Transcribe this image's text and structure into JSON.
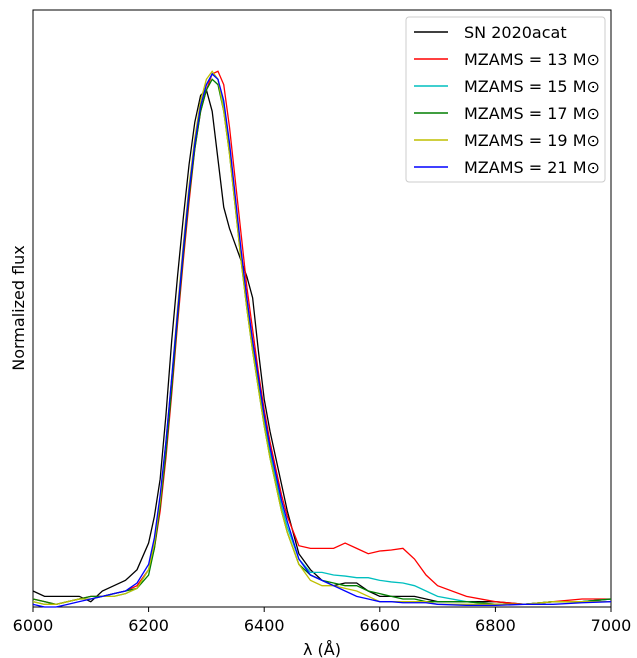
{
  "chart_data": {
    "type": "line",
    "xlabel": "λ (Å)",
    "ylabel": "Normalized flux",
    "x": [
      6000,
      6020,
      6040,
      6060,
      6080,
      6100,
      6120,
      6140,
      6160,
      6180,
      6200,
      6210,
      6220,
      6230,
      6240,
      6250,
      6260,
      6270,
      6280,
      6290,
      6300,
      6310,
      6320,
      6330,
      6340,
      6350,
      6360,
      6370,
      6380,
      6390,
      6400,
      6410,
      6420,
      6430,
      6440,
      6460,
      6480,
      6500,
      6520,
      6540,
      6560,
      6580,
      6600,
      6620,
      6640,
      6660,
      6680,
      6700,
      6750,
      6800,
      6850,
      6900,
      6950,
      7000
    ],
    "xlim": [
      6000,
      7000
    ],
    "xticks": [
      6000,
      6200,
      6400,
      6600,
      6800,
      7000
    ],
    "ylim": [
      0,
      1.12
    ],
    "legend": "upper right",
    "series": [
      {
        "name": "SN 2020acat",
        "color": "#000000",
        "values": [
          0.03,
          0.02,
          0.02,
          0.02,
          0.02,
          0.01,
          0.03,
          0.04,
          0.05,
          0.07,
          0.12,
          0.17,
          0.24,
          0.36,
          0.5,
          0.62,
          0.73,
          0.83,
          0.91,
          0.96,
          0.97,
          0.93,
          0.84,
          0.75,
          0.71,
          0.68,
          0.65,
          0.62,
          0.58,
          0.48,
          0.39,
          0.33,
          0.28,
          0.23,
          0.18,
          0.1,
          0.07,
          0.05,
          0.04,
          0.045,
          0.045,
          0.03,
          0.02,
          0.02,
          0.02,
          0.02,
          0.015,
          0.01,
          0.01,
          0.01,
          0.005,
          0.01,
          0.01,
          0.015
        ]
      },
      {
        "name": "MZAMS = 13 M⊙",
        "color": "#ff0000",
        "values": [
          0.015,
          0.01,
          0.005,
          0.01,
          0.015,
          0.02,
          0.02,
          0.025,
          0.03,
          0.04,
          0.07,
          0.11,
          0.18,
          0.28,
          0.4,
          0.53,
          0.65,
          0.76,
          0.86,
          0.93,
          0.97,
          1.0,
          1.005,
          0.98,
          0.9,
          0.8,
          0.7,
          0.6,
          0.52,
          0.44,
          0.37,
          0.31,
          0.26,
          0.21,
          0.17,
          0.115,
          0.11,
          0.11,
          0.11,
          0.12,
          0.11,
          0.1,
          0.105,
          0.107,
          0.11,
          0.09,
          0.06,
          0.04,
          0.02,
          0.01,
          0.005,
          0.01,
          0.015,
          0.015
        ]
      },
      {
        "name": "MZAMS = 15 M⊙",
        "color": "#00bfbf",
        "values": [
          0.01,
          0.005,
          0.005,
          0.01,
          0.015,
          0.015,
          0.02,
          0.02,
          0.025,
          0.035,
          0.07,
          0.12,
          0.2,
          0.3,
          0.42,
          0.55,
          0.67,
          0.78,
          0.87,
          0.94,
          0.98,
          1.0,
          0.99,
          0.94,
          0.86,
          0.76,
          0.66,
          0.57,
          0.49,
          0.42,
          0.35,
          0.29,
          0.24,
          0.19,
          0.15,
          0.09,
          0.065,
          0.065,
          0.06,
          0.058,
          0.055,
          0.055,
          0.05,
          0.047,
          0.045,
          0.04,
          0.03,
          0.02,
          0.01,
          0.005,
          0.005,
          0.01,
          0.01,
          0.015
        ]
      },
      {
        "name": "MZAMS = 17 M⊙",
        "color": "#007f00",
        "values": [
          0.015,
          0.01,
          0.005,
          0.01,
          0.015,
          0.02,
          0.02,
          0.025,
          0.03,
          0.035,
          0.06,
          0.11,
          0.19,
          0.29,
          0.41,
          0.54,
          0.66,
          0.77,
          0.86,
          0.93,
          0.97,
          0.99,
          0.98,
          0.93,
          0.85,
          0.75,
          0.65,
          0.56,
          0.48,
          0.41,
          0.34,
          0.28,
          0.23,
          0.18,
          0.14,
          0.08,
          0.06,
          0.05,
          0.045,
          0.04,
          0.04,
          0.03,
          0.025,
          0.02,
          0.015,
          0.015,
          0.01,
          0.01,
          0.01,
          0.005,
          0.005,
          0.01,
          0.01,
          0.015
        ]
      },
      {
        "name": "MZAMS = 19 M⊙",
        "color": "#bfbf00",
        "values": [
          0.01,
          0.005,
          0.005,
          0.01,
          0.015,
          0.015,
          0.02,
          0.02,
          0.025,
          0.035,
          0.07,
          0.12,
          0.2,
          0.31,
          0.43,
          0.56,
          0.68,
          0.79,
          0.88,
          0.95,
          0.99,
          1.005,
          0.99,
          0.93,
          0.85,
          0.75,
          0.65,
          0.56,
          0.48,
          0.41,
          0.34,
          0.28,
          0.23,
          0.18,
          0.14,
          0.08,
          0.05,
          0.04,
          0.04,
          0.035,
          0.03,
          0.02,
          0.01,
          0.01,
          0.01,
          0.01,
          0.01,
          0.005,
          0.005,
          0.005,
          0.005,
          0.01,
          0.01,
          0.01
        ]
      },
      {
        "name": "MZAMS = 21 M⊙",
        "color": "#0000ff",
        "values": [
          0.005,
          0.0,
          0.0,
          0.005,
          0.01,
          0.015,
          0.02,
          0.025,
          0.03,
          0.045,
          0.08,
          0.13,
          0.21,
          0.31,
          0.43,
          0.55,
          0.67,
          0.78,
          0.87,
          0.94,
          0.98,
          1.0,
          0.99,
          0.95,
          0.87,
          0.77,
          0.67,
          0.58,
          0.5,
          0.43,
          0.36,
          0.3,
          0.25,
          0.2,
          0.16,
          0.09,
          0.06,
          0.05,
          0.04,
          0.03,
          0.02,
          0.015,
          0.01,
          0.01,
          0.008,
          0.008,
          0.008,
          0.005,
          0.003,
          0.003,
          0.005,
          0.005,
          0.008,
          0.01
        ]
      }
    ]
  }
}
